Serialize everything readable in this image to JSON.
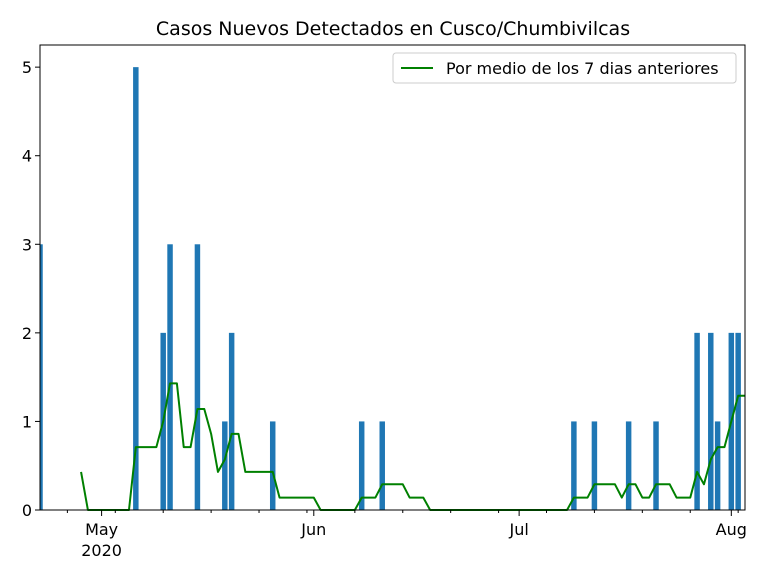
{
  "chart_data": {
    "type": "bar",
    "title": "Casos Nuevos Detectados en Cusco/Chumbivilcas",
    "xlabel": "",
    "ylabel": "",
    "ylim": [
      0,
      5.25
    ],
    "xlim": [
      "2020-04-22",
      "2020-08-03"
    ],
    "y_ticks": [
      0,
      1,
      2,
      3,
      4,
      5
    ],
    "x_ticks": [
      {
        "date": "2020-05-01",
        "label": "May",
        "sublabel": "2020"
      },
      {
        "date": "2020-06-01",
        "label": "Jun",
        "sublabel": ""
      },
      {
        "date": "2020-07-01",
        "label": "Jul",
        "sublabel": ""
      },
      {
        "date": "2020-08-01",
        "label": "Aug",
        "sublabel": ""
      }
    ],
    "legend": {
      "placement": "top-right"
    },
    "bars": {
      "color": "#1f77b4",
      "points": [
        {
          "x": "2020-04-22",
          "y": 3
        },
        {
          "x": "2020-05-06",
          "y": 5
        },
        {
          "x": "2020-05-10",
          "y": 2
        },
        {
          "x": "2020-05-11",
          "y": 3
        },
        {
          "x": "2020-05-15",
          "y": 3
        },
        {
          "x": "2020-05-19",
          "y": 1
        },
        {
          "x": "2020-05-20",
          "y": 2
        },
        {
          "x": "2020-05-26",
          "y": 1
        },
        {
          "x": "2020-06-08",
          "y": 1
        },
        {
          "x": "2020-06-11",
          "y": 1
        },
        {
          "x": "2020-07-09",
          "y": 1
        },
        {
          "x": "2020-07-12",
          "y": 1
        },
        {
          "x": "2020-07-17",
          "y": 1
        },
        {
          "x": "2020-07-21",
          "y": 1
        },
        {
          "x": "2020-07-27",
          "y": 2
        },
        {
          "x": "2020-07-29",
          "y": 2
        },
        {
          "x": "2020-07-30",
          "y": 1
        },
        {
          "x": "2020-08-01",
          "y": 2
        },
        {
          "x": "2020-08-02",
          "y": 2
        }
      ]
    },
    "series": [
      {
        "name": "Por medio de los 7 dias anteriores",
        "color": "#008000",
        "x": [
          "2020-04-28",
          "2020-04-29",
          "2020-04-30",
          "2020-05-01",
          "2020-05-02",
          "2020-05-03",
          "2020-05-04",
          "2020-05-05",
          "2020-05-06",
          "2020-05-07",
          "2020-05-08",
          "2020-05-09",
          "2020-05-10",
          "2020-05-11",
          "2020-05-12",
          "2020-05-13",
          "2020-05-14",
          "2020-05-15",
          "2020-05-16",
          "2020-05-17",
          "2020-05-18",
          "2020-05-19",
          "2020-05-20",
          "2020-05-21",
          "2020-05-22",
          "2020-05-23",
          "2020-05-24",
          "2020-05-25",
          "2020-05-26",
          "2020-05-27",
          "2020-05-28",
          "2020-05-29",
          "2020-05-30",
          "2020-05-31",
          "2020-06-01",
          "2020-06-02",
          "2020-06-03",
          "2020-06-04",
          "2020-06-05",
          "2020-06-06",
          "2020-06-07",
          "2020-06-08",
          "2020-06-09",
          "2020-06-10",
          "2020-06-11",
          "2020-06-12",
          "2020-06-13",
          "2020-06-14",
          "2020-06-15",
          "2020-06-16",
          "2020-06-17",
          "2020-06-18",
          "2020-06-19",
          "2020-06-20",
          "2020-06-21",
          "2020-06-22",
          "2020-06-23",
          "2020-06-24",
          "2020-06-25",
          "2020-06-26",
          "2020-06-27",
          "2020-06-28",
          "2020-06-29",
          "2020-06-30",
          "2020-07-01",
          "2020-07-02",
          "2020-07-03",
          "2020-07-04",
          "2020-07-05",
          "2020-07-06",
          "2020-07-07",
          "2020-07-08",
          "2020-07-09",
          "2020-07-10",
          "2020-07-11",
          "2020-07-12",
          "2020-07-13",
          "2020-07-14",
          "2020-07-15",
          "2020-07-16",
          "2020-07-17",
          "2020-07-18",
          "2020-07-19",
          "2020-07-20",
          "2020-07-21",
          "2020-07-22",
          "2020-07-23",
          "2020-07-24",
          "2020-07-25",
          "2020-07-26",
          "2020-07-27",
          "2020-07-28",
          "2020-07-29",
          "2020-07-30",
          "2020-07-31",
          "2020-08-01",
          "2020-08-02",
          "2020-08-03"
        ],
        "values": [
          0.43,
          0,
          0,
          0,
          0,
          0,
          0,
          0,
          0.71,
          0.71,
          0.71,
          0.71,
          1.0,
          1.43,
          1.43,
          0.71,
          0.71,
          1.14,
          1.14,
          0.86,
          0.43,
          0.57,
          0.86,
          0.86,
          0.43,
          0.43,
          0.43,
          0.43,
          0.43,
          0.14,
          0.14,
          0.14,
          0.14,
          0.14,
          0.14,
          0,
          0,
          0,
          0,
          0,
          0,
          0.14,
          0.14,
          0.14,
          0.29,
          0.29,
          0.29,
          0.29,
          0.14,
          0.14,
          0.14,
          0,
          0,
          0,
          0,
          0,
          0,
          0,
          0,
          0,
          0,
          0,
          0,
          0,
          0,
          0,
          0,
          0,
          0,
          0,
          0,
          0,
          0.14,
          0.14,
          0.14,
          0.29,
          0.29,
          0.29,
          0.29,
          0.14,
          0.29,
          0.29,
          0.14,
          0.14,
          0.29,
          0.29,
          0.29,
          0.14,
          0.14,
          0.14,
          0.43,
          0.29,
          0.57,
          0.71,
          0.71,
          1.0,
          1.29,
          1.29
        ]
      }
    ]
  }
}
